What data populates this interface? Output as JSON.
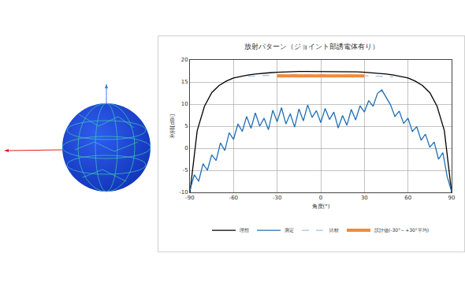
{
  "chart_data": {
    "type": "line",
    "title": "放射パターン（ジョイント部誘電体有り）",
    "x_label": "角度(°)",
    "y_label": "利得[dBi]",
    "xlim": [
      -90,
      90
    ],
    "xticks": [
      -90,
      -60,
      -30,
      0,
      30,
      60,
      90
    ],
    "ylim": [
      -10,
      20
    ],
    "yticks": [
      -10,
      -5,
      0,
      5,
      10,
      15,
      20
    ],
    "grid": true,
    "legend": "bottom",
    "series": [
      {
        "name": "理想",
        "color": "#000000",
        "line_style": "solid",
        "x": [
          -90,
          -85,
          -80,
          -75,
          -70,
          -65,
          -60,
          -55,
          -50,
          -45,
          -40,
          -35,
          -30,
          -25,
          -20,
          -15,
          -10,
          -5,
          0,
          5,
          10,
          15,
          20,
          25,
          30,
          35,
          40,
          45,
          50,
          55,
          60,
          65,
          70,
          75,
          80,
          85,
          90
        ],
        "values": [
          -10,
          4,
          9.5,
          12.6,
          14.2,
          15.2,
          15.9,
          16.3,
          16.6,
          16.8,
          17,
          17.1,
          17.2,
          17.3,
          17.3,
          17.4,
          17.4,
          17.4,
          17.4,
          17.4,
          17.4,
          17.4,
          17.3,
          17.3,
          17.2,
          17.1,
          17,
          16.8,
          16.6,
          16.3,
          15.9,
          15.2,
          14.2,
          12.6,
          9.5,
          4,
          -10
        ]
      },
      {
        "name": "測定",
        "color": "#1f6fb8",
        "line_style": "solid",
        "x": [
          -90,
          -87,
          -84,
          -81,
          -78,
          -75,
          -72,
          -69,
          -66,
          -63,
          -60,
          -57,
          -54,
          -51,
          -48,
          -45,
          -42,
          -39,
          -36,
          -33,
          -30,
          -27,
          -24,
          -21,
          -18,
          -15,
          -12,
          -9,
          -6,
          -3,
          0,
          3,
          6,
          9,
          12,
          15,
          18,
          21,
          24,
          27,
          30,
          33,
          36,
          39,
          42,
          45,
          48,
          51,
          54,
          57,
          60,
          63,
          66,
          69,
          72,
          75,
          78,
          81,
          84,
          87,
          90
        ],
        "values": [
          -9.5,
          -6,
          -7.5,
          -3.5,
          -5,
          -1.5,
          -2.8,
          1.2,
          -0.5,
          3.5,
          2,
          5.5,
          3.8,
          7.2,
          4.5,
          8,
          5,
          6.8,
          4.2,
          8.6,
          6,
          9.2,
          5.5,
          7.8,
          4.8,
          8.9,
          6.2,
          9.8,
          7,
          8.5,
          5.8,
          9,
          6.5,
          8.2,
          4.6,
          7.4,
          5.2,
          8.8,
          6.4,
          9.6,
          8.2,
          10.8,
          9.5,
          12.4,
          13.2,
          11.5,
          9.8,
          7.2,
          8.4,
          5.6,
          6.8,
          3.8,
          4.9,
          1.8,
          3.2,
          0.2,
          1.4,
          -2.5,
          -1,
          -6.5,
          -9.8
        ]
      },
      {
        "name": "比較",
        "color": "#9cc3e6",
        "line_style": "dash",
        "x": [
          -50,
          -40,
          -30,
          -20,
          -10,
          0,
          10,
          20,
          30,
          40,
          50
        ],
        "values": [
          16.3,
          16.5,
          16.6,
          16.7,
          16.6,
          16.7,
          16.5,
          16.6,
          16.4,
          16.3,
          16.2
        ]
      },
      {
        "name": "設計値(-30°～+30°平均)",
        "color": "#f08a3c",
        "line_style": "solid",
        "x": [
          -30,
          -20,
          -10,
          0,
          10,
          20,
          30
        ],
        "values": [
          16.4,
          16.4,
          16.5,
          16.5,
          16.5,
          16.4,
          16.4
        ]
      }
    ]
  }
}
